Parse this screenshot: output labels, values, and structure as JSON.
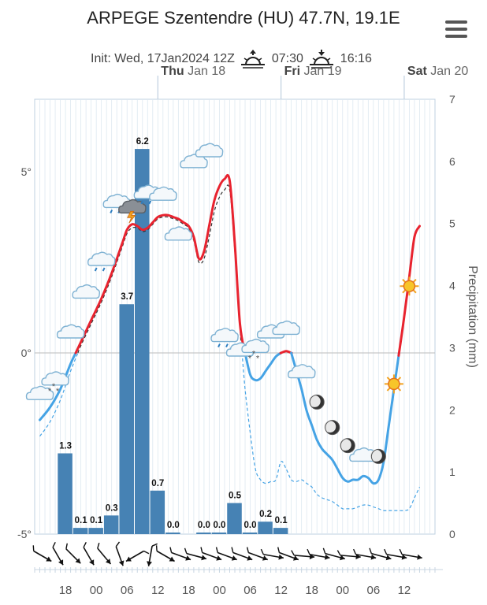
{
  "header": {
    "title": "ARPEGE Szentendre (HU) 47.7N, 19.1E",
    "init_label": "Init: Wed, 17Jan2024 12Z",
    "sunrise": "07:30",
    "sunset": "16:16"
  },
  "icons": {
    "menu": "hamburger-menu-icon",
    "sunrise": "sunrise-icon",
    "sunset": "sunset-icon",
    "cloud": "cloud-icon",
    "moon": "moon-icon",
    "sun": "sun-icon",
    "wind": "wind-barb-icon"
  },
  "colors": {
    "temp_warm": "#e8232f",
    "temp_cold": "#45a3e5",
    "dewpoint": "#333333",
    "dewpoint_cold": "#45a3e5",
    "precip_bar": "#4682b4",
    "grid": "#dde8f0",
    "axis": "#bfd0e0"
  },
  "chart_data": {
    "type": "bar+line",
    "title": "ARPEGE Szentendre (HU) 47.7N, 19.1E",
    "days": [
      {
        "name": "Thu",
        "date": "Jan 18",
        "hour": 24
      },
      {
        "name": "Fri",
        "date": "Jan 19",
        "hour": 48
      },
      {
        "name": "Sat",
        "date": "Jan 20",
        "hour": 72
      }
    ],
    "x_hours_since_init": {
      "min": 0,
      "max": 78
    },
    "x_tick_labels": [
      {
        "hour": 6,
        "label": "18"
      },
      {
        "hour": 12,
        "label": "00"
      },
      {
        "hour": 18,
        "label": "06"
      },
      {
        "hour": 24,
        "label": "12"
      },
      {
        "hour": 30,
        "label": "18"
      },
      {
        "hour": 36,
        "label": "00"
      },
      {
        "hour": 42,
        "label": "06"
      },
      {
        "hour": 48,
        "label": "12"
      },
      {
        "hour": 54,
        "label": "18"
      },
      {
        "hour": 60,
        "label": "00"
      },
      {
        "hour": 66,
        "label": "06"
      },
      {
        "hour": 72,
        "label": "12"
      }
    ],
    "y_left": {
      "label": "",
      "range": [
        -5,
        7
      ],
      "ticks": [
        {
          "v": -5,
          "t": "-5°"
        },
        {
          "v": 0,
          "t": "0°"
        },
        {
          "v": 5,
          "t": "5°"
        }
      ]
    },
    "y_right": {
      "label": "Precipitation (mm)",
      "range": [
        0,
        7
      ],
      "ticks": [
        0,
        1,
        2,
        3,
        4,
        5,
        6,
        7
      ]
    },
    "precipitation": [
      {
        "hour": 6,
        "value": 1.3,
        "label": "1.3"
      },
      {
        "hour": 9,
        "value": 0.1,
        "label": "0.1"
      },
      {
        "hour": 12,
        "value": 0.1,
        "label": "0.1"
      },
      {
        "hour": 15,
        "value": 0.3,
        "label": "0.3"
      },
      {
        "hour": 18,
        "value": 3.7,
        "label": "3.7"
      },
      {
        "hour": 21,
        "value": 6.2,
        "label": "6.2"
      },
      {
        "hour": 24,
        "value": 0.7,
        "label": "0.7"
      },
      {
        "hour": 27,
        "value": 0.0,
        "label": "0.0"
      },
      {
        "hour": 33,
        "value": 0.0,
        "label": "0.0"
      },
      {
        "hour": 36,
        "value": 0.0,
        "label": "0.0"
      },
      {
        "hour": 39,
        "value": 0.5,
        "label": "0.5"
      },
      {
        "hour": 42,
        "value": 0.0,
        "label": "0.0"
      },
      {
        "hour": 45,
        "value": 0.2,
        "label": "0.2"
      },
      {
        "hour": 48,
        "value": 0.1,
        "label": "0.1"
      }
    ],
    "temperature": {
      "hours": [
        1,
        3,
        5,
        7,
        9,
        11,
        13,
        15,
        17,
        18,
        19,
        20,
        21,
        22,
        23,
        24,
        25,
        26,
        27,
        28,
        29,
        30,
        31,
        32,
        33,
        34,
        35,
        36,
        37,
        38,
        39,
        40,
        41,
        42,
        43,
        44,
        45,
        46,
        47,
        48,
        49,
        50,
        51,
        52,
        53,
        54,
        55,
        56,
        57,
        58,
        59,
        60,
        61,
        62,
        63,
        64,
        65,
        66,
        67,
        68,
        69,
        70,
        71,
        72,
        73,
        74,
        75
      ],
      "values": [
        -1.85,
        -1.5,
        -1.0,
        -0.3,
        0.3,
        0.9,
        1.5,
        2.2,
        3.0,
        3.4,
        3.55,
        3.5,
        3.4,
        3.45,
        3.6,
        3.75,
        3.8,
        3.8,
        3.75,
        3.7,
        3.6,
        3.5,
        3.2,
        2.6,
        2.8,
        3.5,
        4.2,
        4.6,
        4.8,
        4.75,
        3.0,
        0.8,
        0.0,
        -0.6,
        -0.75,
        -0.7,
        -0.5,
        -0.3,
        -0.1,
        0.0,
        0.05,
        0.0,
        -0.5,
        -1.0,
        -1.6,
        -2.0,
        -2.4,
        -2.65,
        -2.8,
        -2.95,
        -3.2,
        -3.45,
        -3.55,
        -3.5,
        -3.5,
        -3.4,
        -3.45,
        -3.6,
        -3.5,
        -3.0,
        -2.0,
        -1.0,
        0.0,
        1.0,
        2.1,
        3.2,
        3.5
      ]
    },
    "dewpoint": {
      "hours": [
        1,
        3,
        5,
        7,
        9,
        11,
        13,
        15,
        17,
        18,
        19,
        20,
        21,
        22,
        23,
        24,
        25,
        26,
        27,
        28,
        29,
        30,
        31,
        32,
        33,
        34,
        35,
        36,
        37,
        38,
        39,
        40,
        41,
        42,
        43,
        44,
        45,
        46,
        47,
        48,
        49,
        50,
        51,
        52,
        53,
        54,
        55,
        56,
        57,
        58,
        59,
        60,
        61,
        62,
        63,
        64,
        65,
        66,
        67,
        68,
        69,
        70,
        71,
        72,
        73,
        74,
        75
      ],
      "values": [
        -2.3,
        -1.9,
        -1.3,
        -0.5,
        0.2,
        0.8,
        1.4,
        2.1,
        2.9,
        3.3,
        3.45,
        3.45,
        3.35,
        3.4,
        3.55,
        3.7,
        3.75,
        3.75,
        3.7,
        3.65,
        3.55,
        3.45,
        3.1,
        2.5,
        2.6,
        3.2,
        3.9,
        4.3,
        4.5,
        4.5,
        2.8,
        0.7,
        -1.0,
        -2.2,
        -3.2,
        -3.5,
        -3.6,
        -3.55,
        -3.5,
        -3.0,
        -3.2,
        -3.5,
        -3.55,
        -3.5,
        -3.6,
        -3.7,
        -3.9,
        -4.0,
        -4.05,
        -4.1,
        -4.2,
        -4.3,
        -4.3,
        -4.3,
        -4.25,
        -4.2,
        -4.2,
        -4.25,
        -4.3,
        -4.35,
        -4.35,
        -4.35,
        -4.35,
        -4.35,
        -4.3,
        -4.0,
        -3.7
      ]
    },
    "weather_icons": [
      {
        "hour": 1,
        "temp": -1.2,
        "type": "cloud"
      },
      {
        "hour": 4,
        "temp": -0.8,
        "type": "cloud-snow"
      },
      {
        "hour": 7,
        "temp": 0.5,
        "type": "cloud"
      },
      {
        "hour": 10,
        "temp": 1.6,
        "type": "cloud"
      },
      {
        "hour": 13,
        "temp": 2.5,
        "type": "cloud-rain"
      },
      {
        "hour": 16,
        "temp": 4.1,
        "type": "cloud-rain"
      },
      {
        "hour": 19,
        "temp": 3.95,
        "type": "cloud-thunder"
      },
      {
        "hour": 22,
        "temp": 4.35,
        "type": "cloud-rain"
      },
      {
        "hour": 25,
        "temp": 4.3,
        "type": "cloud"
      },
      {
        "hour": 28,
        "temp": 3.2,
        "type": "cloud"
      },
      {
        "hour": 31,
        "temp": 5.2,
        "type": "cloud"
      },
      {
        "hour": 34,
        "temp": 5.5,
        "type": "cloud"
      },
      {
        "hour": 37,
        "temp": 0.4,
        "type": "cloud-rain"
      },
      {
        "hour": 40,
        "temp": 0.0,
        "type": "cloud"
      },
      {
        "hour": 43,
        "temp": 0.1,
        "type": "cloud-snow"
      },
      {
        "hour": 46,
        "temp": 0.5,
        "type": "cloud"
      },
      {
        "hour": 49,
        "temp": 0.6,
        "type": "cloud"
      },
      {
        "hour": 52,
        "temp": -0.6,
        "type": "cloud"
      },
      {
        "hour": 55,
        "temp": -1.4,
        "type": "moon"
      },
      {
        "hour": 58,
        "temp": -2.1,
        "type": "moon"
      },
      {
        "hour": 61,
        "temp": -2.6,
        "type": "moon"
      },
      {
        "hour": 64,
        "temp": -2.9,
        "type": "cloud"
      },
      {
        "hour": 67,
        "temp": -2.9,
        "type": "moon"
      },
      {
        "hour": 70,
        "temp": -0.9,
        "type": "sun"
      },
      {
        "hour": 73,
        "temp": 1.8,
        "type": "sun"
      }
    ],
    "wind_directions_deg": [
      300,
      330,
      315,
      330,
      320,
      340,
      60,
      10,
      300,
      290,
      285,
      290,
      290,
      290,
      290,
      280,
      290,
      275,
      280,
      285,
      275,
      280,
      285,
      280,
      280
    ]
  }
}
